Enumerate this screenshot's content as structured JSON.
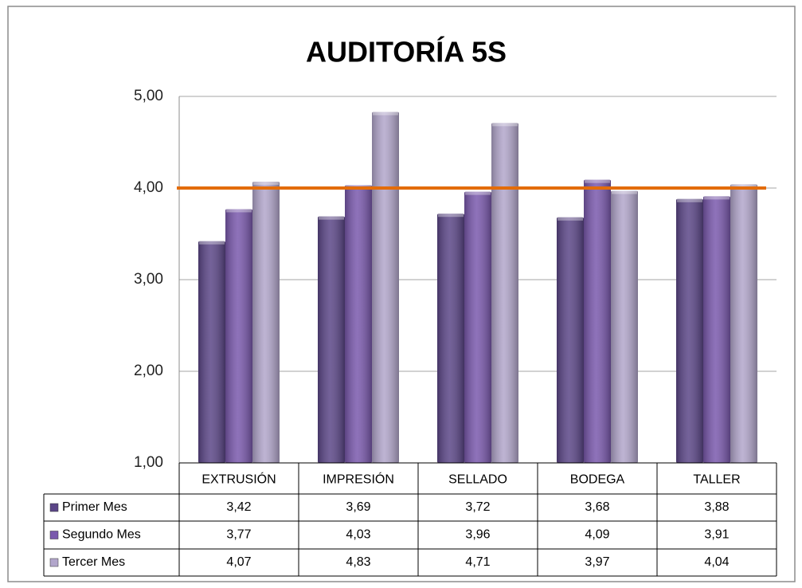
{
  "chart_data": {
    "type": "bar",
    "title": "AUDITORÍA 5S",
    "categories": [
      "EXTRUSIÓN",
      "IMPRESIÓN",
      "SELLADO",
      "BODEGA",
      "TALLER"
    ],
    "series": [
      {
        "name": "Primer Mes",
        "color": "#5b4687",
        "values": [
          3.42,
          3.69,
          3.72,
          3.68,
          3.88
        ],
        "value_labels": [
          "3,42",
          "3,69",
          "3,72",
          "3,68",
          "3,88"
        ]
      },
      {
        "name": "Segundo Mes",
        "color": "#7a59ad",
        "values": [
          3.77,
          4.03,
          3.96,
          4.09,
          3.91
        ],
        "value_labels": [
          "3,77",
          "4,03",
          "3,96",
          "4,09",
          "3,91"
        ]
      },
      {
        "name": "Tercer Mes",
        "color": "#b2a6cb",
        "values": [
          4.07,
          4.83,
          4.71,
          3.97,
          4.04
        ],
        "value_labels": [
          "4,07",
          "4,83",
          "4,71",
          "3,97",
          "4,04"
        ]
      }
    ],
    "ylim": [
      1,
      5
    ],
    "yticks": [
      {
        "value": 1,
        "label": "1,00"
      },
      {
        "value": 2,
        "label": "2,00"
      },
      {
        "value": 3,
        "label": "3,00"
      },
      {
        "value": 4,
        "label": "4,00"
      },
      {
        "value": 5,
        "label": "5,00"
      }
    ],
    "grid": true,
    "target": {
      "value": 4,
      "color": "#e36c09"
    },
    "data_table": true
  }
}
